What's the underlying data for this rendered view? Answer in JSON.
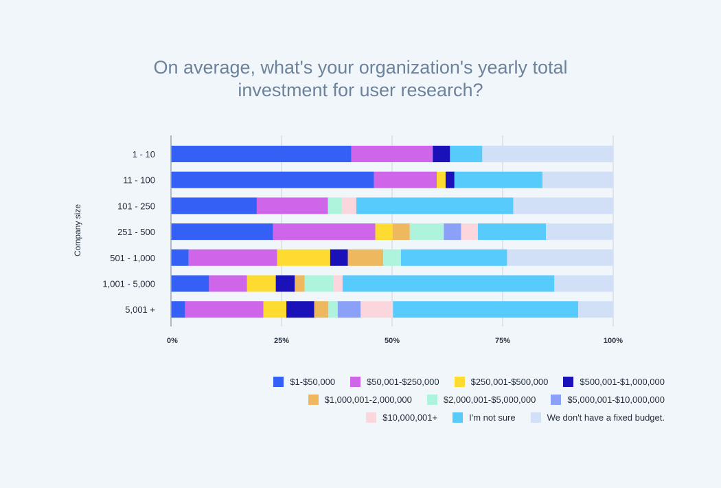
{
  "title_lines": [
    "On average, what's your organization's yearly total",
    "investment for user research?"
  ],
  "chart_data": {
    "type": "bar",
    "orientation": "horizontal",
    "stacked": true,
    "normalized": true,
    "title": "On average, what's your organization's yearly total investment for user research?",
    "ylabel": "Company size",
    "xlabel": "",
    "xlim": [
      0,
      100
    ],
    "x_ticks": [
      "0%",
      "25%",
      "50%",
      "75%",
      "100%"
    ],
    "categories": [
      "1 - 10",
      "11 - 100",
      "101 - 250",
      "251 - 500",
      "501 - 1,000",
      "1,001 - 5,000",
      "5,001 +"
    ],
    "series": [
      {
        "name": "$1-$50,000",
        "color": "#3560f5",
        "values": [
          40.8,
          45.9,
          19.4,
          23.1,
          4.0,
          8.6,
          3.2
        ]
      },
      {
        "name": "$50,001-$250,000",
        "color": "#cf66ea",
        "values": [
          18.4,
          14.2,
          16.1,
          23.1,
          20.0,
          8.6,
          17.7
        ]
      },
      {
        "name": "$250,001-$500,000",
        "color": "#fddb31",
        "values": [
          0,
          2.0,
          0,
          3.9,
          12.0,
          6.5,
          5.2
        ]
      },
      {
        "name": "$500,001-$1,000,000",
        "color": "#1a12b8",
        "values": [
          3.9,
          2.0,
          0,
          0,
          4.0,
          4.3,
          6.3
        ]
      },
      {
        "name": "$1,000,001-2,000,000",
        "color": "#eeb85e",
        "values": [
          0,
          0,
          0,
          3.9,
          8.0,
          2.2,
          3.2
        ]
      },
      {
        "name": "$2,000,001-$5,000,000",
        "color": "#aef4dc",
        "values": [
          0,
          0,
          3.2,
          7.7,
          4.0,
          6.5,
          2.1
        ]
      },
      {
        "name": "$5,000,001-$10,000,000",
        "color": "#8ba1f7",
        "values": [
          0,
          0,
          0,
          3.9,
          0,
          0,
          5.2
        ]
      },
      {
        "name": "$10,000,001+",
        "color": "#fcd6dd",
        "values": [
          0,
          0,
          3.2,
          3.8,
          0,
          2.1,
          7.3
        ]
      },
      {
        "name": "I'm not sure",
        "color": "#58cbfd",
        "values": [
          7.3,
          19.9,
          35.5,
          15.4,
          24.0,
          47.9,
          41.9
        ]
      },
      {
        "name": "We don't have a fixed budget.",
        "color": "#d2e0f7",
        "values": [
          29.6,
          16.0,
          22.6,
          15.2,
          24.0,
          13.3,
          7.9
        ]
      }
    ]
  },
  "legend_rows": [
    [
      0,
      1,
      2,
      3
    ],
    [
      4,
      5,
      6
    ],
    [
      7,
      8,
      9
    ]
  ]
}
